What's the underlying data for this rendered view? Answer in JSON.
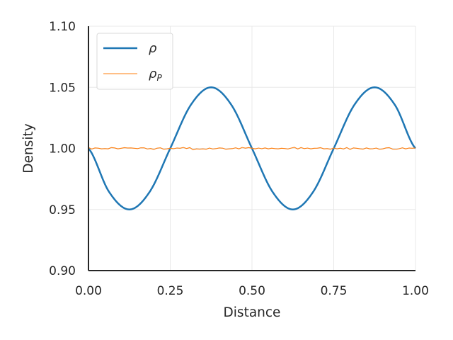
{
  "chart_data": {
    "type": "line",
    "xlabel": "Distance",
    "ylabel": "Density",
    "xlim": [
      0.0,
      1.0
    ],
    "ylim": [
      0.9,
      1.1
    ],
    "x_ticks": [
      "0.00",
      "0.25",
      "0.50",
      "0.75",
      "1.00"
    ],
    "y_ticks": [
      "0.90",
      "0.95",
      "1.00",
      "1.05",
      "1.10"
    ],
    "grid": true,
    "legend_position": "upper-left",
    "series": [
      {
        "name": "ρ",
        "color": "#1f77b4",
        "description_formula": "1 - 0.05*sin(4*pi*x)",
        "x": [
          0.0,
          0.0625,
          0.125,
          0.1875,
          0.25,
          0.3125,
          0.375,
          0.4375,
          0.5,
          0.5625,
          0.625,
          0.6875,
          0.75,
          0.8125,
          0.875,
          0.9375,
          1.0
        ],
        "y": [
          1.0,
          0.9646,
          0.95,
          0.9646,
          1.0,
          1.0354,
          1.05,
          1.0354,
          1.0,
          0.9646,
          0.95,
          0.9646,
          1.0,
          1.0354,
          1.05,
          1.0354,
          1.0
        ]
      },
      {
        "name": "ρ",
        "name_subscript": "P",
        "color": "#ff7f0e",
        "x": [
          0.0,
          0.01,
          0.02,
          0.03,
          0.04,
          0.05,
          0.06,
          0.07,
          0.08,
          0.09,
          0.1,
          0.11,
          0.12,
          0.13,
          0.14,
          0.15,
          0.16,
          0.17,
          0.18,
          0.19,
          0.2,
          0.21,
          0.22,
          0.23,
          0.24,
          0.25,
          0.26,
          0.27,
          0.28,
          0.29,
          0.3,
          0.31,
          0.32,
          0.33,
          0.34,
          0.35,
          0.36,
          0.37,
          0.38,
          0.39,
          0.4,
          0.41,
          0.42,
          0.43,
          0.44,
          0.45,
          0.46,
          0.47,
          0.48,
          0.49,
          0.5,
          0.51,
          0.52,
          0.53,
          0.54,
          0.55,
          0.56,
          0.57,
          0.58,
          0.59,
          0.6,
          0.61,
          0.62,
          0.63,
          0.64,
          0.65,
          0.66,
          0.67,
          0.68,
          0.69,
          0.7,
          0.71,
          0.72,
          0.73,
          0.74,
          0.75,
          0.76,
          0.77,
          0.78,
          0.79,
          0.8,
          0.81,
          0.82,
          0.83,
          0.84,
          0.85,
          0.86,
          0.87,
          0.88,
          0.89,
          0.9,
          0.91,
          0.92,
          0.93,
          0.94,
          0.95,
          0.96,
          0.97,
          0.98,
          0.99,
          1.0
        ],
        "y": [
          1.0008,
          0.9994,
          1.0004,
          1.0002,
          0.9996,
          0.9998,
          0.9996,
          1.0007,
          1.0004,
          0.9996,
          1.0001,
          1.0006,
          1.0003,
          1.0004,
          1.0001,
          0.9998,
          1.0005,
          1.0005,
          0.9995,
          0.9999,
          0.9991,
          1.0002,
          1.0005,
          0.9993,
          0.9996,
          1.0001,
          0.9997,
          1.0003,
          1.0001,
          1.0008,
          0.9999,
          1.0007,
          0.9988,
          0.9996,
          0.9994,
          0.9996,
          0.9993,
          1.0003,
          0.9995,
          0.9998,
          1.0004,
          1.0002,
          0.9993,
          0.9996,
          0.9998,
          1.0005,
          0.9996,
          1.0008,
          1.0002,
          1.0007,
          1.0001,
          0.9996,
          1.0003,
          0.9997,
          1.0004,
          0.9996,
          1.0002,
          0.9998,
          0.9996,
          1.0001,
          0.9999,
          0.9995,
          1.0003,
          1.0009,
          0.9995,
          1.0007,
          0.9998,
          1.0003,
          0.9996,
          1.0001,
          1.0002,
          1.0006,
          0.9996,
          0.9998,
          0.9993,
          1.0003,
          0.9996,
          1.0002,
          0.9995,
          1.0007,
          0.9991,
          1.0004,
          1.0001,
          0.9997,
          0.9994,
          1.0004,
          0.9996,
          0.9997,
          1.0003,
          0.9992,
          0.9996,
          1.0004,
          1.0006,
          0.9994,
          0.9992,
          0.9997,
          1.0005,
          0.9996,
          1.0003,
          1.0001,
          1.0003
        ]
      }
    ]
  }
}
